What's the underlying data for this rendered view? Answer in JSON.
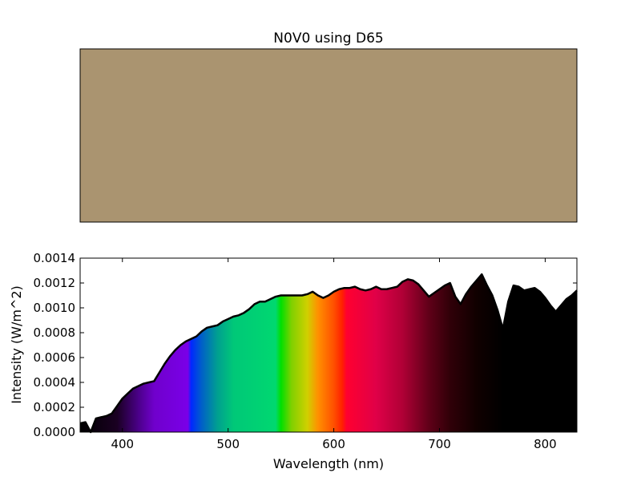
{
  "title": "N0V0 using D65",
  "swatch": {
    "color": "#aa9470"
  },
  "chart_data": {
    "type": "area",
    "title": "",
    "xlabel": "Wavelength (nm)",
    "ylabel": "Intensity (W/m^2)",
    "xlim": [
      360,
      830
    ],
    "ylim": [
      0,
      0.0014
    ],
    "x_ticks": [
      400,
      500,
      600,
      700,
      800
    ],
    "y_ticks": [
      0.0,
      0.0002,
      0.0004,
      0.0006,
      0.0008,
      0.001,
      0.0012,
      0.0014
    ],
    "x_tick_labels": [
      "400",
      "500",
      "600",
      "700",
      "800"
    ],
    "y_tick_labels": [
      "0.0000",
      "0.0002",
      "0.0004",
      "0.0006",
      "0.0008",
      "0.0010",
      "0.0012",
      "0.0014"
    ],
    "fill": "wavelength-colored spectrum",
    "x": [
      360,
      365,
      370,
      375,
      380,
      385,
      390,
      395,
      400,
      405,
      410,
      415,
      420,
      425,
      430,
      435,
      440,
      445,
      450,
      455,
      460,
      465,
      470,
      475,
      480,
      485,
      490,
      495,
      500,
      505,
      510,
      515,
      520,
      525,
      530,
      535,
      540,
      545,
      550,
      555,
      560,
      565,
      570,
      575,
      580,
      585,
      590,
      595,
      600,
      605,
      610,
      615,
      620,
      625,
      630,
      635,
      640,
      645,
      650,
      655,
      660,
      665,
      670,
      675,
      680,
      685,
      690,
      695,
      700,
      705,
      710,
      715,
      720,
      725,
      730,
      735,
      740,
      745,
      750,
      755,
      760,
      765,
      770,
      775,
      780,
      785,
      790,
      795,
      800,
      805,
      810,
      815,
      820,
      825,
      830
    ],
    "values": [
      7e-05,
      8e-05,
      0.0,
      0.00011,
      0.00012,
      0.00013,
      0.00015,
      0.00021,
      0.00027,
      0.00031,
      0.00035,
      0.00037,
      0.00039,
      0.0004,
      0.00041,
      0.00048,
      0.00055,
      0.00061,
      0.00066,
      0.0007,
      0.00073,
      0.00075,
      0.00077,
      0.00081,
      0.00084,
      0.00085,
      0.00086,
      0.00089,
      0.00091,
      0.00093,
      0.00094,
      0.00096,
      0.00099,
      0.00103,
      0.00105,
      0.00105,
      0.00107,
      0.00109,
      0.0011,
      0.0011,
      0.0011,
      0.0011,
      0.0011,
      0.00111,
      0.00113,
      0.0011,
      0.00108,
      0.0011,
      0.00113,
      0.00115,
      0.00116,
      0.00116,
      0.00117,
      0.00115,
      0.00114,
      0.00115,
      0.00117,
      0.00115,
      0.00115,
      0.00116,
      0.00117,
      0.00121,
      0.00123,
      0.00122,
      0.00119,
      0.00114,
      0.00109,
      0.00112,
      0.00115,
      0.00118,
      0.0012,
      0.00109,
      0.00103,
      0.00111,
      0.00117,
      0.00122,
      0.00127,
      0.00118,
      0.0011,
      0.00098,
      0.00083,
      0.00105,
      0.00118,
      0.00117,
      0.00114,
      0.00115,
      0.00116,
      0.00113,
      0.00108,
      0.00102,
      0.00097,
      0.00102,
      0.00107,
      0.0011,
      0.00114
    ]
  }
}
